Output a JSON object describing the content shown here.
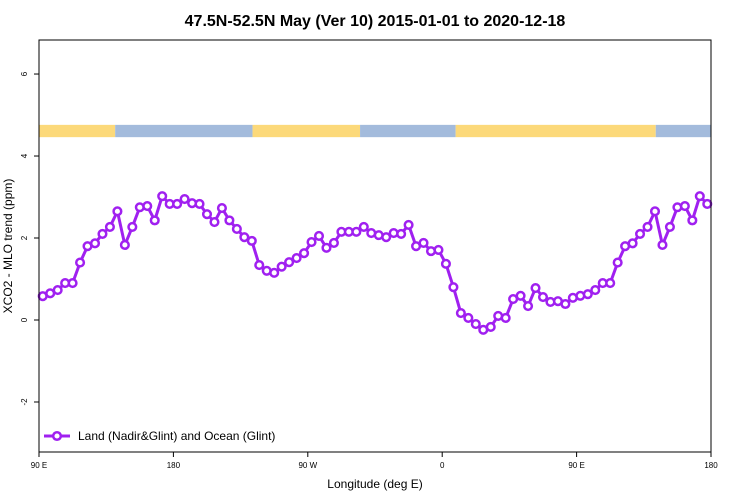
{
  "chart_data": {
    "type": "line",
    "title": "47.5N-52.5N May (Ver 10)   2015-01-01 to 2020-12-18",
    "x_label": "Longitude (deg E)",
    "y_label": "XCO2 - MLO trend (ppm)",
    "xlim": [
      90,
      540
    ],
    "xticks": [
      {
        "value": 90,
        "label": "90 E"
      },
      180,
      {
        "value": 270,
        "label": "90 W"
      },
      {
        "value": 360,
        "label": "0"
      },
      {
        "value": 450,
        "label": "90 E"
      },
      {
        "value": 540,
        "label": "180"
      }
    ],
    "ylim": [
      -3.22,
      6.83
    ],
    "yticks": [
      -2,
      0,
      2,
      4,
      6
    ],
    "legend": "bottomleft",
    "strip": {
      "ylim": [
        4.46,
        4.76
      ],
      "segments": [
        {
          "xlim": [
            90,
            141
          ],
          "color": "#fcd97a"
        },
        {
          "xlim": [
            141,
            233
          ],
          "color": "#a3bbdc"
        },
        {
          "xlim": [
            233,
            305
          ],
          "color": "#fcd97a"
        },
        {
          "xlim": [
            305,
            369
          ],
          "color": "#a3bbdc"
        },
        {
          "xlim": [
            369,
            503
          ],
          "color": "#fcd97a"
        },
        {
          "xlim": [
            503,
            540
          ],
          "color": "#a3bbdc"
        }
      ]
    },
    "x": [
      92.5,
      97.5,
      102.5,
      107.5,
      112.5,
      117.5,
      122.5,
      127.5,
      132.5,
      137.5,
      142.5,
      147.5,
      152.5,
      157.5,
      162.5,
      167.5,
      172.5,
      177.5,
      182.5,
      187.5,
      192.5,
      197.5,
      202.5,
      207.5,
      212.5,
      217.5,
      222.5,
      227.5,
      232.5,
      237.5,
      242.5,
      247.5,
      252.5,
      257.5,
      262.5,
      267.5,
      272.5,
      277.5,
      282.5,
      287.5,
      292.5,
      297.5,
      302.5,
      307.5,
      312.5,
      317.5,
      322.5,
      327.5,
      332.5,
      337.5,
      342.5,
      347.5,
      352.5,
      357.5,
      362.5,
      367.5,
      372.5,
      377.5,
      382.5,
      387.5,
      392.5,
      397.5,
      402.5,
      407.5,
      412.5,
      417.5,
      422.5,
      427.5,
      432.5,
      437.5,
      442.5,
      447.5,
      452.5,
      457.5,
      462.5,
      467.5,
      472.5,
      477.5,
      482.5,
      487.5,
      492.5,
      497.5,
      502.5,
      507.5,
      512.5,
      517.5,
      522.5,
      527.5,
      532.5,
      537.5
    ],
    "series": [
      {
        "name": "Land (Nadir&Glint) and Ocean (Glint)",
        "color": "#a020f0",
        "values": [
          0.58,
          0.65,
          0.73,
          0.9,
          0.9,
          1.4,
          1.8,
          1.87,
          2.1,
          2.27,
          2.65,
          1.83,
          2.27,
          2.75,
          2.78,
          2.43,
          3.02,
          2.83,
          2.83,
          2.95,
          2.85,
          2.83,
          2.58,
          2.39,
          2.73,
          2.43,
          2.22,
          2.02,
          1.93,
          1.34,
          1.2,
          1.15,
          1.3,
          1.41,
          1.51,
          1.63,
          1.9,
          2.05,
          1.76,
          1.88,
          2.15,
          2.15,
          2.15,
          2.27,
          2.12,
          2.07,
          2.02,
          2.12,
          2.1,
          2.32,
          1.8,
          1.88,
          1.68,
          1.71,
          1.37,
          0.8,
          0.17,
          0.05,
          -0.1,
          -0.24,
          -0.17,
          0.1,
          0.05,
          0.51,
          0.59,
          0.34,
          0.78,
          0.56,
          0.44,
          0.46,
          0.39,
          0.54,
          0.59,
          0.63,
          0.73,
          0.9,
          0.9,
          1.4,
          1.8,
          1.87,
          2.1,
          2.27,
          2.65,
          1.83,
          2.27,
          2.75,
          2.78,
          2.43,
          3.02,
          2.83
        ]
      }
    ]
  }
}
